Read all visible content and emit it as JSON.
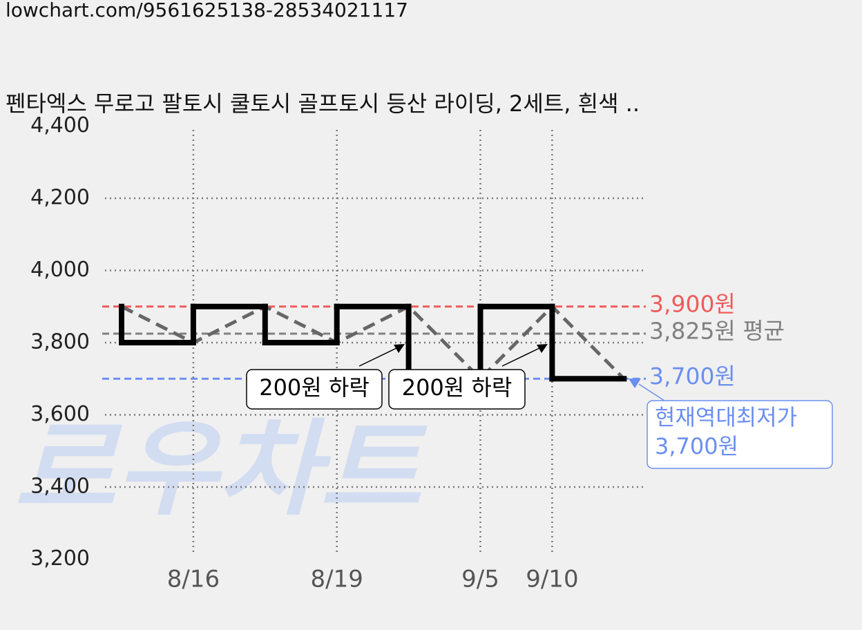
{
  "url": "lowchart.com/9561625138-28534021117",
  "chart_data": {
    "type": "line",
    "title": "펜타엑스 무로고 팔토시 쿨토시 골프토시 등산 라이딩, 2세트, 흰색 ..",
    "watermark": "로우차트",
    "categories": [
      null,
      "8/16",
      null,
      "8/19",
      null,
      "9/5",
      "9/10",
      null
    ],
    "series": [
      {
        "color": "#000000",
        "values": [
          3900,
          3800,
          3900,
          3800,
          3900,
          3700,
          3900,
          3700
        ]
      }
    ],
    "ylim": [
      3200,
      4400
    ],
    "yticks": [
      {
        "value": 3200,
        "label": "3,200"
      },
      {
        "value": 3400,
        "label": "3,400"
      },
      {
        "value": 3600,
        "label": "3,600"
      },
      {
        "value": 3800,
        "label": "3,800"
      },
      {
        "value": 4000,
        "label": "4,000"
      },
      {
        "value": 4200,
        "label": "4,200"
      },
      {
        "value": 4400,
        "label": "4,400"
      }
    ],
    "grid": true,
    "reference_lines": [
      {
        "value": 3900,
        "label": "3,900원",
        "color": "#f05a5a"
      },
      {
        "value": 3825,
        "label": "3,825원 평균",
        "color": "#808080"
      },
      {
        "value": 3700,
        "label": "3,700원",
        "color": "#6b8ff0"
      }
    ],
    "annotations": [
      "200원 하락",
      "200원 하락"
    ],
    "current_low": {
      "lines": [
        "현재역대최저가",
        "3,700원"
      ],
      "color": "#6b8ff0"
    }
  }
}
